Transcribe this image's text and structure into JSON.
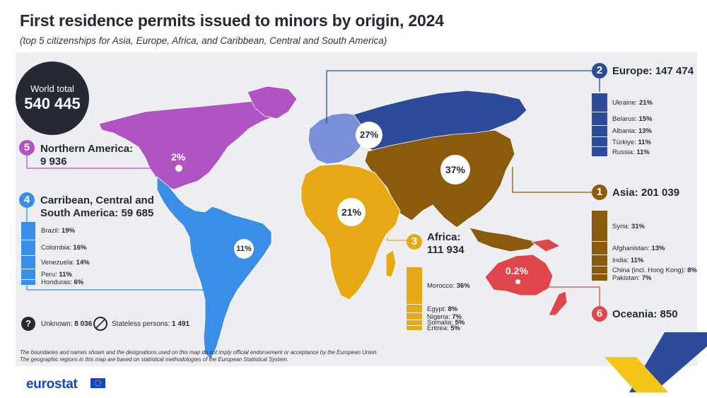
{
  "title": "First residence permits issued to minors by origin, 2024",
  "subtitle": "(top 5 citizenships for Asia, Europe, Africa, and Caribbean, Central and South America)",
  "world_total": {
    "label": "World total",
    "value": "540 445"
  },
  "colors": {
    "europe": "#2e4b9b",
    "europe_light": "#7b8fd8",
    "asia": "#8a5b0d",
    "africa": "#e6a915",
    "americas_south": "#3a8ee8",
    "northern_america": "#b054c4",
    "oceania": "#e0474c",
    "dark": "#262834"
  },
  "regions": {
    "europe": {
      "rank": "2",
      "name": "Europe:",
      "total": "147 474",
      "share": "27%",
      "citizenships": [
        {
          "label": "Ukraine:",
          "value": "21%",
          "share": 21
        },
        {
          "label": "Belarus:",
          "value": "15%",
          "share": 15
        },
        {
          "label": "Albania:",
          "value": "13%",
          "share": 13
        },
        {
          "label": "Türkiye:",
          "value": "11%",
          "share": 11
        },
        {
          "label": "Russia:",
          "value": "11%",
          "share": 11
        }
      ]
    },
    "asia": {
      "rank": "1",
      "name": "Asia:",
      "total": "201 039",
      "share": "37%",
      "citizenships": [
        {
          "label": "Syria:",
          "value": "31%",
          "share": 31
        },
        {
          "label": "Afghanistan:",
          "value": "13%",
          "share": 13
        },
        {
          "label": "India:",
          "value": "11%",
          "share": 11
        },
        {
          "label": "China (incl. Hong Kong):",
          "value": "8%",
          "share": 8
        },
        {
          "label": "Pakistan:",
          "value": "7%",
          "share": 7
        }
      ]
    },
    "africa": {
      "rank": "3",
      "name": "Africa:",
      "total": "111 934",
      "share": "21%",
      "citizenships": [
        {
          "label": "Morocco:",
          "value": "36%",
          "share": 36
        },
        {
          "label": "Egypt:",
          "value": "8%",
          "share": 8
        },
        {
          "label": "Nigeria:",
          "value": "7%",
          "share": 7
        },
        {
          "label": "Somalia:",
          "value": "5%",
          "share": 5
        },
        {
          "label": "Eritrea:",
          "value": "5%",
          "share": 5
        }
      ]
    },
    "americas": {
      "rank": "4",
      "name": "Carribean, Central and",
      "name2": "South America:",
      "total": "59 685",
      "share": "11%",
      "citizenships": [
        {
          "label": "Brazil:",
          "value": "19%",
          "share": 19
        },
        {
          "label": "Colombia:",
          "value": "16%",
          "share": 16
        },
        {
          "label": "Venezuela:",
          "value": "14%",
          "share": 14
        },
        {
          "label": "Peru:",
          "value": "11%",
          "share": 11
        },
        {
          "label": "Honduras:",
          "value": "6%",
          "share": 6
        }
      ]
    },
    "northern_america": {
      "rank": "5",
      "name": "Northern America:",
      "total": "9 936",
      "share": "2%"
    },
    "oceania": {
      "rank": "6",
      "name": "Oceania:",
      "total": "850",
      "share": "0.2%"
    }
  },
  "unknown": {
    "label": "Unknown:",
    "value": "8 036",
    "icon": "question-icon"
  },
  "stateless": {
    "label": "Stateless persons:",
    "value": "1 491",
    "icon": "stateless-icon"
  },
  "footnotes": [
    "The boundaries and names shown and the designations used on this map do not imply official endorsement or acceptance by the European Union.",
    "The geographic regions in this map are based on statistical methodologies of the European Statistical System."
  ],
  "logo": "eurostat"
}
